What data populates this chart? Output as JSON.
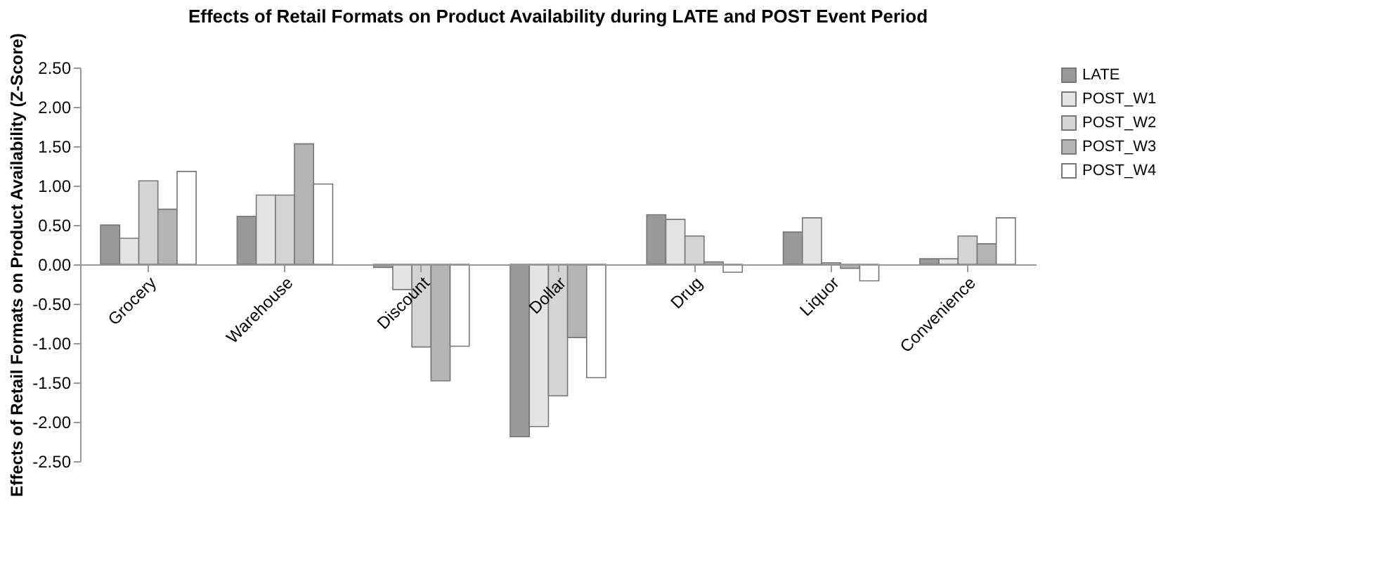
{
  "chart_data": {
    "type": "bar",
    "title": "Effects of Retail Formats on Product Availability during LATE and POST Event Period",
    "ylabel": "Effects of Retail Formats on Product Availability (Z-Score)",
    "categories": [
      "Grocery",
      "Warehouse",
      "Discount",
      "Dollar",
      "Drug",
      "Liquor",
      "Convenience"
    ],
    "series": [
      {
        "name": "LATE",
        "color": "#999999",
        "values": [
          0.5,
          0.61,
          -0.04,
          -2.19,
          0.63,
          0.41,
          0.07
        ]
      },
      {
        "name": "POST_W1",
        "color": "#e4e4e4",
        "values": [
          0.33,
          0.88,
          -0.32,
          -2.06,
          0.57,
          0.59,
          0.07
        ]
      },
      {
        "name": "POST_W2",
        "color": "#d4d4d4",
        "values": [
          1.06,
          0.88,
          -1.05,
          -1.67,
          0.36,
          0.02,
          0.36
        ]
      },
      {
        "name": "POST_W3",
        "color": "#b4b4b4",
        "values": [
          0.7,
          1.53,
          -1.48,
          -0.93,
          0.03,
          -0.05,
          0.26
        ]
      },
      {
        "name": "POST_W4",
        "color": "#ffffff",
        "values": [
          1.18,
          1.02,
          -1.04,
          -1.44,
          -0.1,
          -0.21,
          0.59
        ]
      }
    ],
    "ylim": [
      -2.5,
      2.5
    ],
    "yticks": [
      {
        "value": -2.5,
        "label": "-2.50"
      },
      {
        "value": -2,
        "label": "-2.00"
      },
      {
        "value": -1.5,
        "label": "-1.50"
      },
      {
        "value": -1,
        "label": "-1.00"
      },
      {
        "value": -0.5,
        "label": "-0.50"
      },
      {
        "value": 0,
        "label": "0.00"
      },
      {
        "value": 0.5,
        "label": "0.50"
      },
      {
        "value": 1,
        "label": "1.00"
      },
      {
        "value": 1.5,
        "label": "1.50"
      },
      {
        "value": 2,
        "label": "2.00"
      },
      {
        "value": 2.5,
        "label": "2.50"
      }
    ],
    "grid": false,
    "legend": "right"
  }
}
